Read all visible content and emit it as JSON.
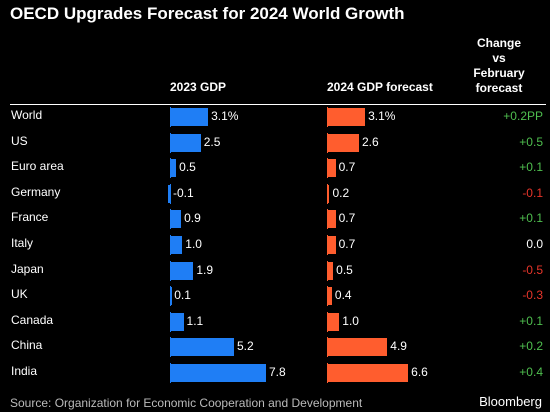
{
  "title": "OECD Upgrades Forecast for 2024 World Growth",
  "headers": {
    "gdp_2023": "2023 GDP",
    "gdp_2024": "2024 GDP forecast",
    "change_lines": [
      "Change",
      "vs",
      "February",
      "forecast"
    ]
  },
  "colors": {
    "bar_2023": "#1f7ef5",
    "bar_2024": "#ff5d2e",
    "positive": "#4fbf4f",
    "negative": "#e8352a",
    "neutral": "#ffffff"
  },
  "chart_data": {
    "type": "bar",
    "title": "OECD Upgrades Forecast for 2024 World Growth",
    "categories": [
      "World",
      "US",
      "Euro area",
      "Germany",
      "France",
      "Italy",
      "Japan",
      "UK",
      "Canada",
      "China",
      "India"
    ],
    "series": [
      {
        "name": "2023 GDP",
        "values": [
          3.1,
          2.5,
          0.5,
          -0.1,
          0.9,
          1.0,
          1.9,
          0.1,
          1.1,
          5.2,
          7.8
        ],
        "labels": [
          "3.1%",
          "2.5",
          "0.5",
          "-0.1",
          "0.9",
          "1.0",
          "1.9",
          "0.1",
          "1.1",
          "5.2",
          "7.8"
        ]
      },
      {
        "name": "2024 GDP forecast",
        "values": [
          3.1,
          2.6,
          0.7,
          0.2,
          0.7,
          0.7,
          0.5,
          0.4,
          1.0,
          4.9,
          6.6
        ],
        "labels": [
          "3.1%",
          "2.6",
          "0.7",
          "0.2",
          "0.7",
          "0.7",
          "0.5",
          "0.4",
          "1.0",
          "4.9",
          "6.6"
        ]
      }
    ],
    "change_vs_february": {
      "values": [
        0.2,
        0.5,
        0.1,
        -0.1,
        0.1,
        0.0,
        -0.5,
        -0.3,
        0.1,
        0.2,
        0.4
      ],
      "labels": [
        "+0.2PP",
        "+0.5",
        "+0.1",
        "-0.1",
        "+0.1",
        "0.0",
        "-0.5",
        "-0.3",
        "+0.1",
        "+0.2",
        "+0.4"
      ]
    }
  },
  "source": "Source: Organization for Economic Cooperation and Development",
  "brand": "Bloomberg"
}
